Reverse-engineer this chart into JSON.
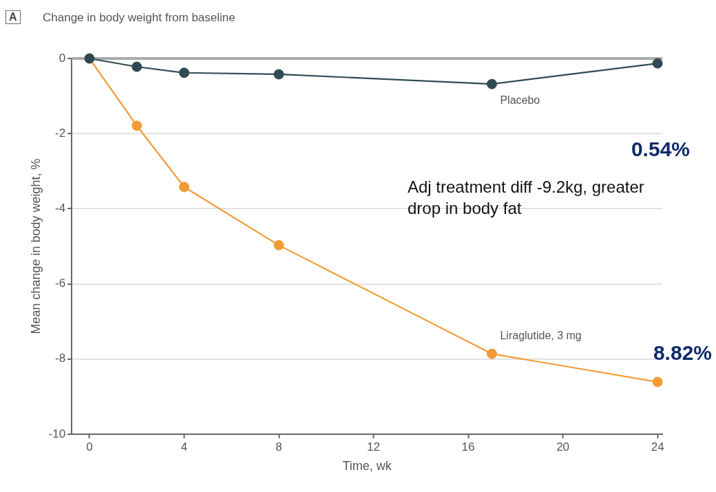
{
  "chart_data": {
    "type": "line",
    "title": "Change in body weight from baseline",
    "xlabel": "Time, wk",
    "ylabel": "Mean change in body weight, %",
    "annotations": [
      "A",
      "0.54%",
      "Adj treatment diff -9.2kg, greater drop in body fat",
      "8.82%"
    ],
    "series": [
      {
        "name": "Placebo",
        "color": "#2f4a52",
        "x": [
          0,
          2,
          4,
          8,
          17,
          24
        ],
        "values": [
          0,
          -0.22,
          -0.38,
          -0.42,
          -0.68,
          -0.13
        ]
      },
      {
        "name": "Liraglutide, 3 mg",
        "color": "#f29b35",
        "x": [
          0,
          2,
          4,
          8,
          17,
          24
        ],
        "values": [
          0,
          -1.79,
          -3.42,
          -4.97,
          -7.86,
          -8.61
        ]
      }
    ],
    "xlim": [
      -0.75,
      24.2
    ],
    "xticks": [
      0,
      4,
      8,
      12,
      16,
      20,
      24
    ],
    "ylim": [
      -10,
      0
    ],
    "yticks": [
      -10,
      -8,
      -6,
      -4,
      -2,
      0
    ],
    "grid": "y",
    "legend": false,
    "marker": "circle",
    "line_style": "solid"
  }
}
